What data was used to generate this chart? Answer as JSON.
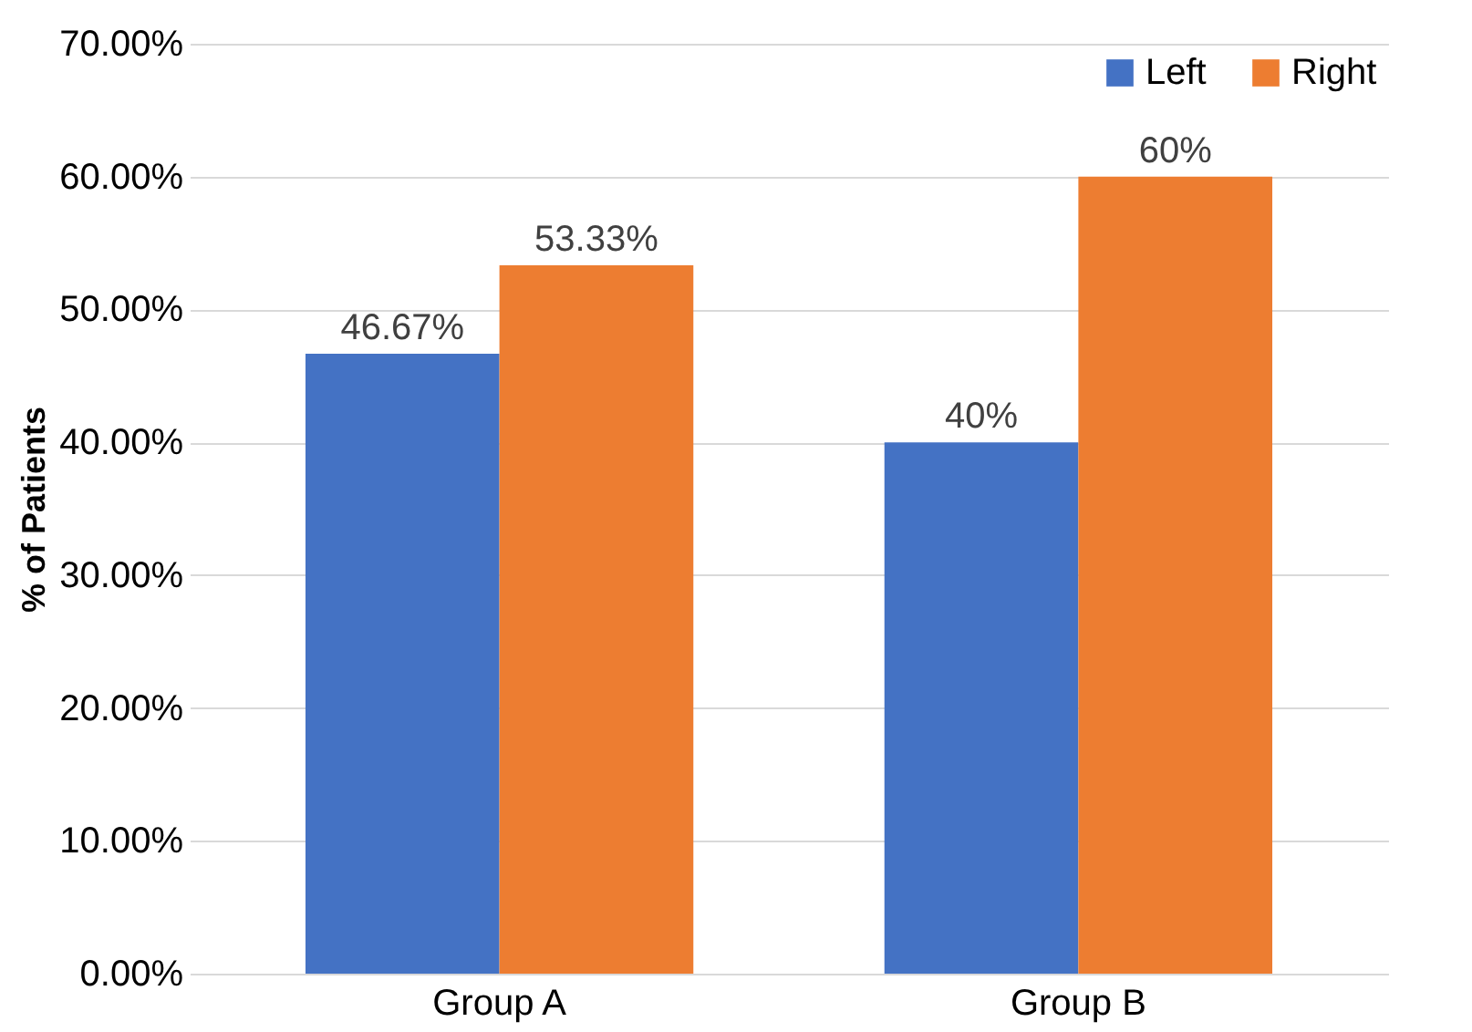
{
  "chart_data": {
    "type": "bar",
    "ylabel": "% of Patients",
    "categories": [
      "Group A",
      "Group B"
    ],
    "series": [
      {
        "name": "Left",
        "color": "#4472c4",
        "values": [
          46.67,
          40
        ],
        "value_labels": [
          "46.67%",
          "40%"
        ]
      },
      {
        "name": "Right",
        "color": "#ed7d31",
        "values": [
          53.33,
          60
        ],
        "value_labels": [
          "53.33%",
          "60%"
        ]
      }
    ],
    "ylim": [
      0,
      70
    ],
    "yticks": [
      {
        "value": 0,
        "label": "0.00%"
      },
      {
        "value": 10,
        "label": "10.00%"
      },
      {
        "value": 20,
        "label": "20.00%"
      },
      {
        "value": 30,
        "label": "30.00%"
      },
      {
        "value": 40,
        "label": "40.00%"
      },
      {
        "value": 50,
        "label": "50.00%"
      },
      {
        "value": 60,
        "label": "60.00%"
      },
      {
        "value": 70,
        "label": "70.00%"
      }
    ],
    "grid": "y",
    "legend": "top right"
  }
}
